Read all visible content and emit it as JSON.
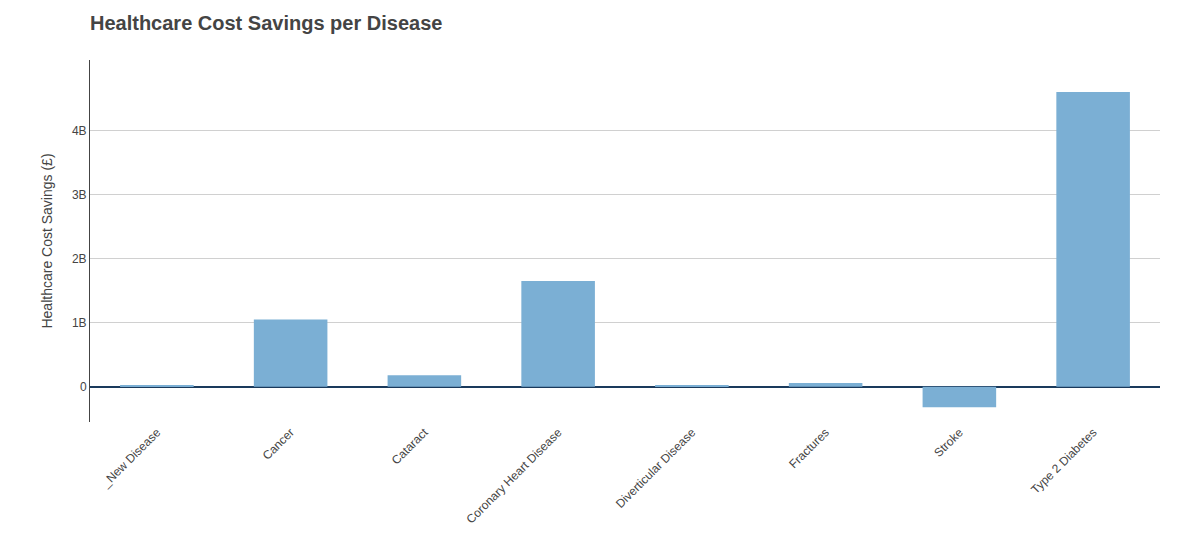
{
  "chart_data": {
    "type": "bar",
    "title": "Healthcare Cost Savings per Disease",
    "ylabel": "Healthcare Cost Savings (£)",
    "categories": [
      "_New Disease",
      "Cancer",
      "Cataract",
      "Coronary Heart Disease",
      "Diverticular Disease",
      "Fractures",
      "Stroke",
      "Type 2 Diabetes"
    ],
    "values": [
      0.02,
      1.05,
      0.18,
      1.65,
      0.015,
      0.06,
      -0.32,
      4.6
    ],
    "color": "#7bafd4",
    "ylim": [
      -0.55,
      5.1
    ],
    "yticks": [
      0,
      {
        "value": 1,
        "label": "1B"
      },
      {
        "value": 2,
        "label": "2B"
      },
      {
        "value": 3,
        "label": "3B"
      },
      {
        "value": 4,
        "label": "4B"
      }
    ],
    "grid": true
  }
}
